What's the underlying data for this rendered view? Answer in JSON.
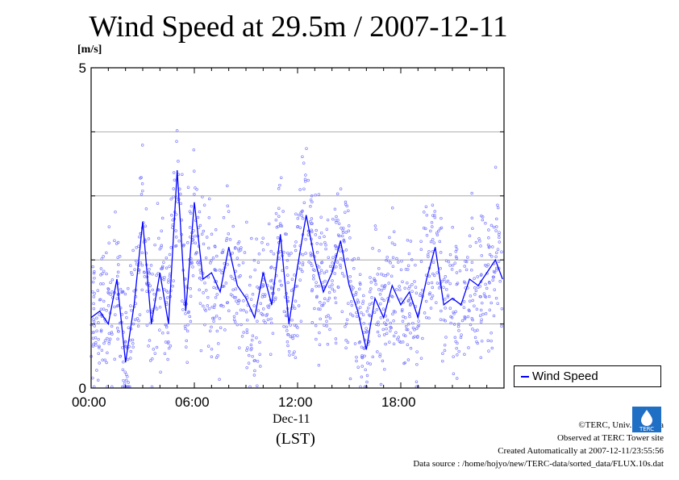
{
  "title": "Wind Speed at 29.5m / 2007-12-11",
  "unit": "[m/s]",
  "legend": {
    "label": "Wind Speed"
  },
  "xaxis": {
    "date": "Dec-11",
    "timezone": "(LST)"
  },
  "credits": {
    "line1": "©TERC, Univ. Tsukuba",
    "line2": "Observed at TERC Tower site",
    "line3": "Created Automatically at 2007-12-11/23:55:56",
    "line4": "Data source : /home/hojyo/new/TERC-data/sorted_data/FLUX.10s.dat"
  },
  "logo": {
    "text": "TERC"
  },
  "colors": {
    "series": "#0000ff",
    "scatter": "#7a7aff",
    "grid": "#999999"
  },
  "chart_data": {
    "type": "line",
    "title": "Wind Speed at 29.5m / 2007-12-11",
    "ylabel": "[m/s]",
    "xlabel": "Dec-11 (LST)",
    "xlim": [
      "2007-12-11 00:00",
      "2007-12-12 00:00"
    ],
    "ylim": [
      0,
      5
    ],
    "yticks": [
      0,
      5
    ],
    "xticks": [
      "00:00",
      "06:00",
      "12:00",
      "18:00"
    ],
    "grid": true,
    "legend_position": "right",
    "series": [
      {
        "name": "Wind Speed",
        "x": [
          "00:00",
          "00:30",
          "01:00",
          "01:30",
          "02:00",
          "02:30",
          "03:00",
          "03:30",
          "04:00",
          "04:30",
          "05:00",
          "05:30",
          "06:00",
          "06:30",
          "07:00",
          "07:30",
          "08:00",
          "08:30",
          "09:00",
          "09:30",
          "10:00",
          "10:30",
          "11:00",
          "11:30",
          "12:00",
          "12:30",
          "13:00",
          "13:30",
          "14:00",
          "14:30",
          "15:00",
          "15:30",
          "16:00",
          "16:30",
          "17:00",
          "17:30",
          "18:00",
          "18:30",
          "19:00",
          "19:30",
          "20:00",
          "20:30",
          "21:00",
          "21:30",
          "22:00",
          "22:30",
          "23:00",
          "23:30",
          "23:55"
        ],
        "y": [
          1.1,
          1.2,
          1.0,
          1.7,
          0.4,
          1.3,
          2.6,
          1.0,
          1.8,
          1.0,
          3.4,
          1.2,
          2.9,
          1.7,
          1.8,
          1.5,
          2.2,
          1.6,
          1.4,
          1.1,
          1.8,
          1.3,
          2.4,
          1.0,
          1.9,
          2.7,
          2.0,
          1.5,
          1.8,
          2.3,
          1.6,
          1.2,
          0.6,
          1.4,
          1.1,
          1.6,
          1.3,
          1.5,
          1.1,
          1.7,
          2.2,
          1.3,
          1.4,
          1.3,
          1.7,
          1.6,
          1.8,
          2.0,
          1.7
        ]
      }
    ]
  }
}
